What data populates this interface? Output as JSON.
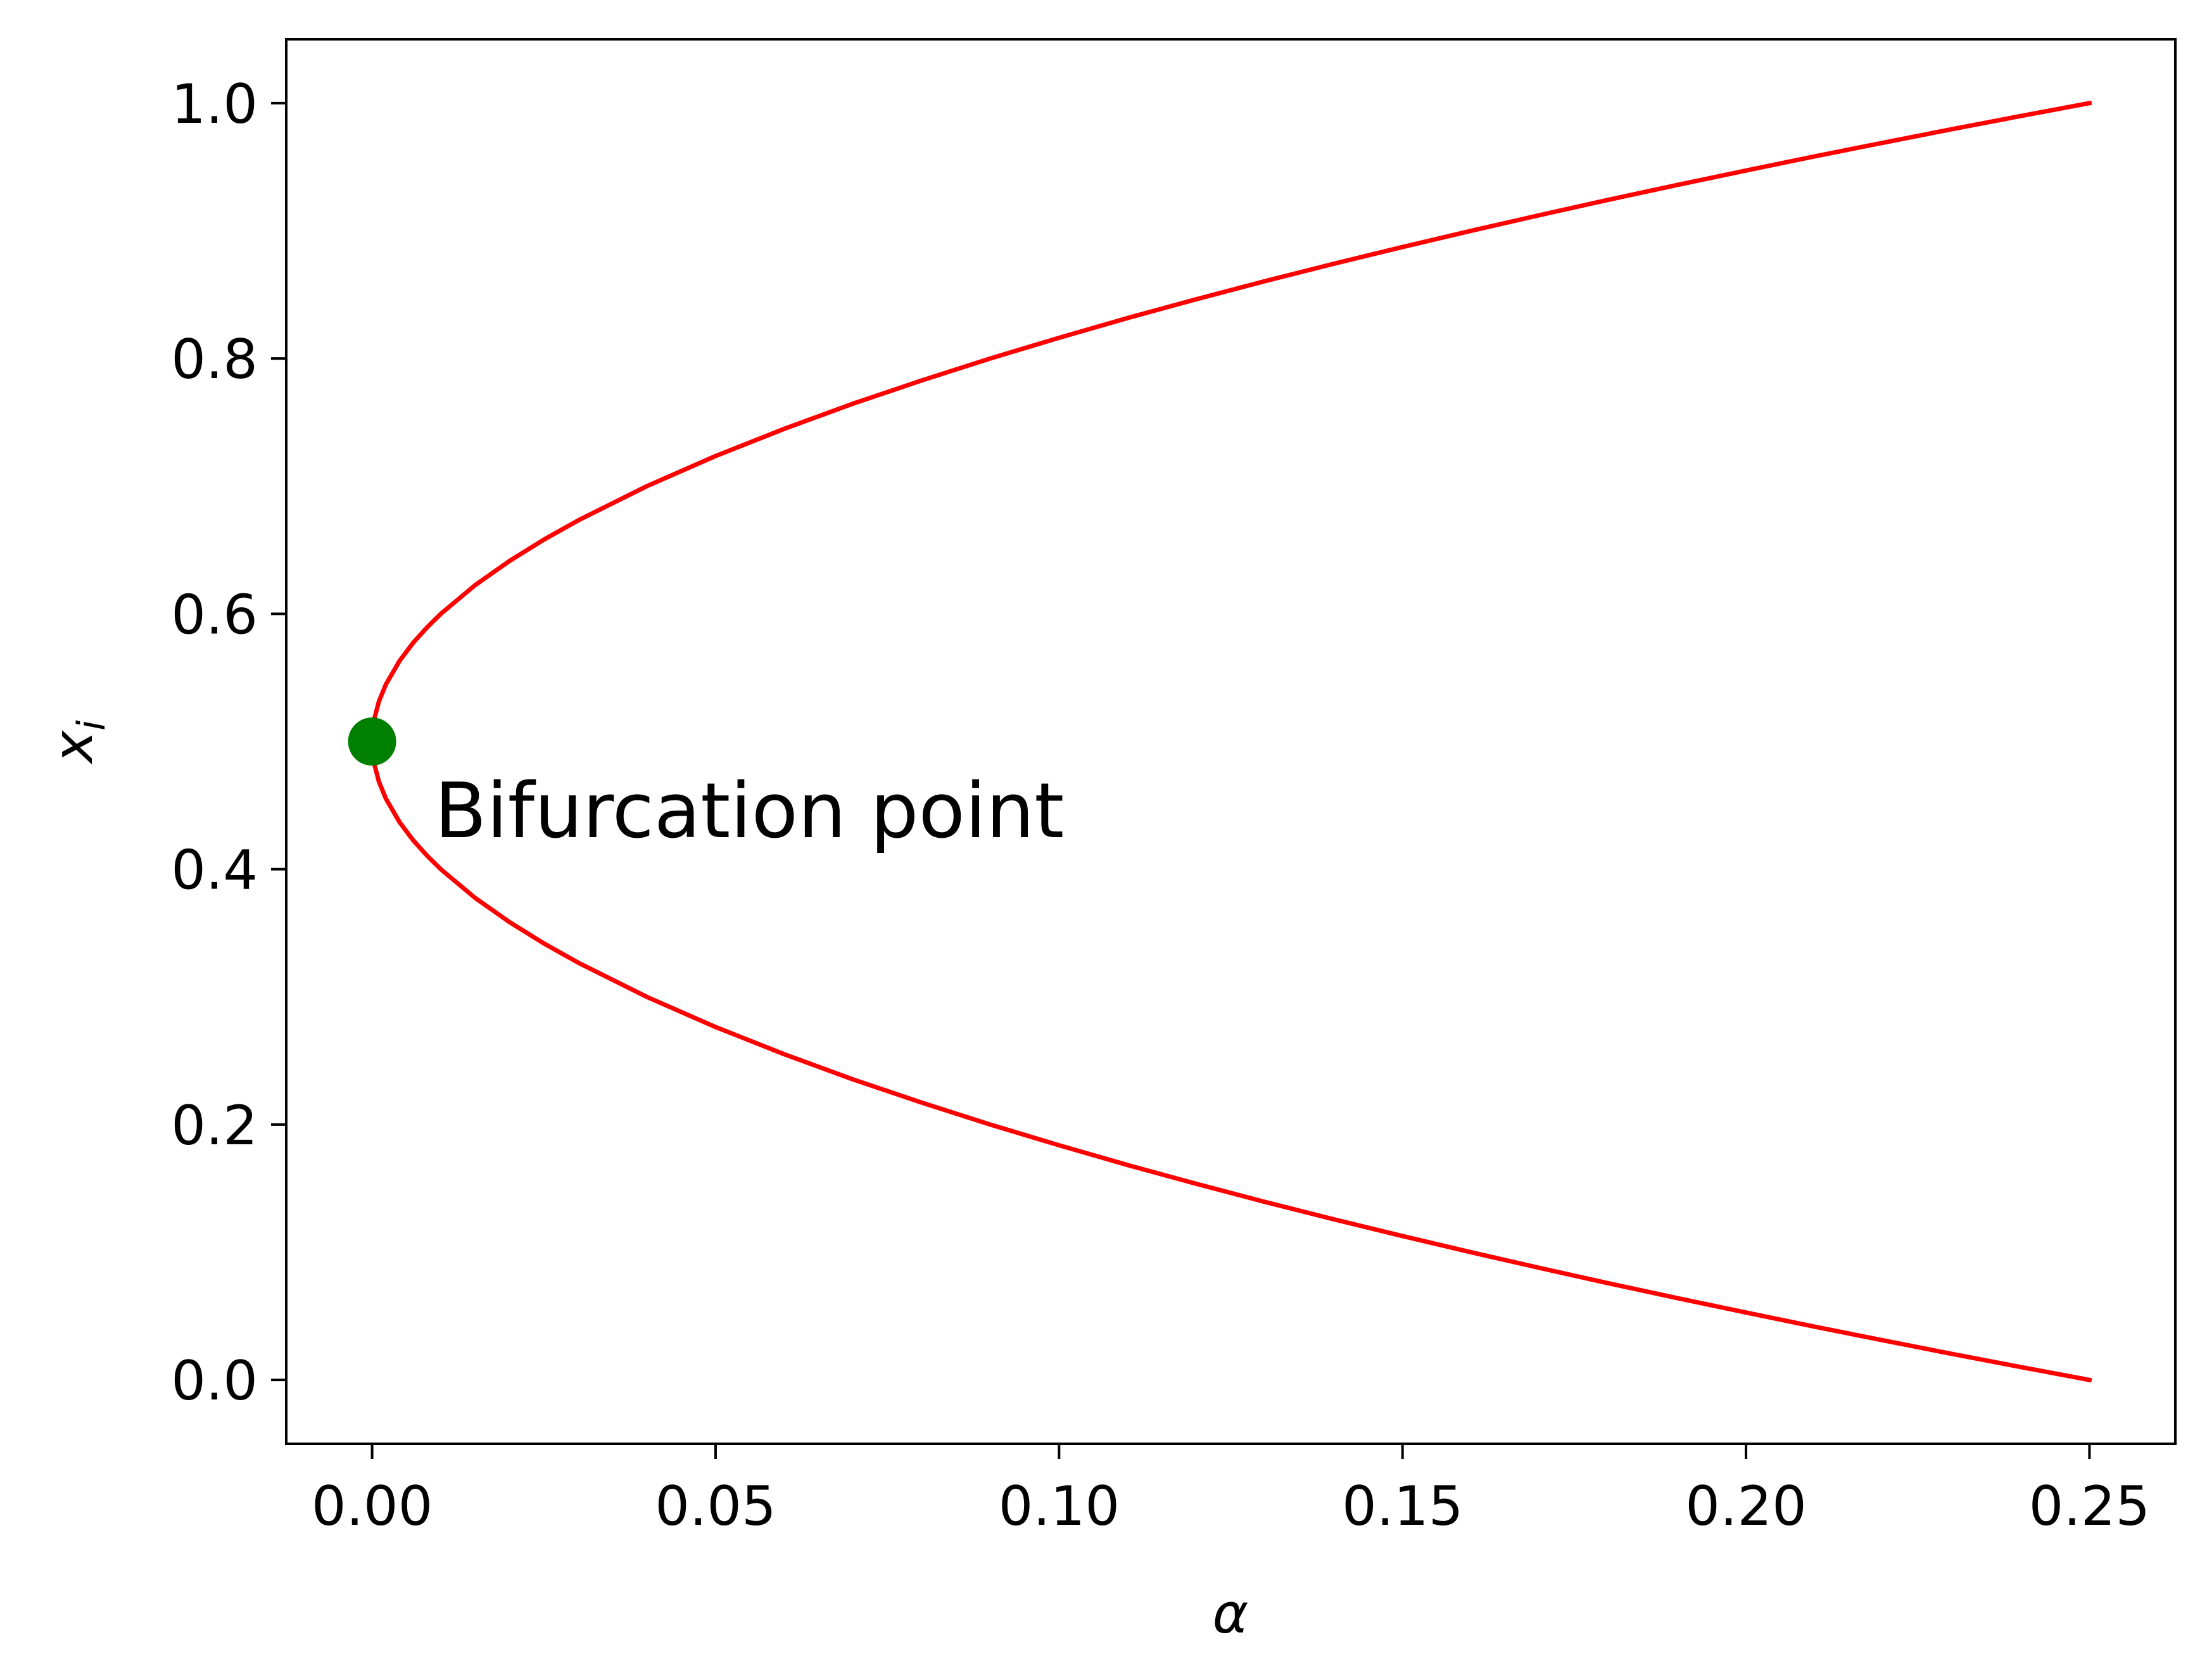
{
  "chart_data": {
    "type": "line",
    "title": "",
    "xlabel": "α",
    "ylabel_base": "x",
    "ylabel_sub": "i",
    "xlim": [
      -0.0125,
      0.2625
    ],
    "ylim": [
      -0.05,
      1.05
    ],
    "xticks": [
      0.0,
      0.05,
      0.1,
      0.15,
      0.2,
      0.25
    ],
    "xtick_labels": [
      "0.00",
      "0.05",
      "0.10",
      "0.15",
      "0.20",
      "0.25"
    ],
    "yticks": [
      0.0,
      0.2,
      0.4,
      0.6,
      0.8,
      1.0
    ],
    "ytick_labels": [
      "0.0",
      "0.2",
      "0.4",
      "0.6",
      "0.8",
      "1.0"
    ],
    "grid": false,
    "series": [
      {
        "color": "#ff0000",
        "x": [
          0.0,
          0.0003,
          0.001,
          0.002,
          0.004,
          0.006,
          0.008,
          0.01,
          0.015,
          0.02,
          0.025,
          0.03,
          0.04,
          0.05,
          0.06,
          0.07,
          0.08,
          0.09,
          0.1,
          0.11,
          0.12,
          0.13,
          0.14,
          0.15,
          0.16,
          0.17,
          0.18,
          0.19,
          0.2,
          0.21,
          0.22,
          0.23,
          0.24,
          0.25
        ],
        "y": [
          0.5,
          0.5173,
          0.5316,
          0.5447,
          0.5632,
          0.5775,
          0.5894,
          0.6,
          0.6225,
          0.6414,
          0.6581,
          0.6732,
          0.7,
          0.7236,
          0.7449,
          0.7646,
          0.7828,
          0.8,
          0.8162,
          0.8317,
          0.8464,
          0.8606,
          0.8742,
          0.8873,
          0.9,
          0.9123,
          0.9243,
          0.9359,
          0.9472,
          0.9583,
          0.969,
          0.9796,
          0.9899,
          1.0
        ]
      },
      {
        "color": "#ff0000",
        "x": [
          0.0,
          0.0003,
          0.001,
          0.002,
          0.004,
          0.006,
          0.008,
          0.01,
          0.015,
          0.02,
          0.025,
          0.03,
          0.04,
          0.05,
          0.06,
          0.07,
          0.08,
          0.09,
          0.1,
          0.11,
          0.12,
          0.13,
          0.14,
          0.15,
          0.16,
          0.17,
          0.18,
          0.19,
          0.2,
          0.21,
          0.22,
          0.23,
          0.24,
          0.25
        ],
        "y": [
          0.5,
          0.4827,
          0.4684,
          0.4553,
          0.4368,
          0.4225,
          0.4106,
          0.4,
          0.3775,
          0.3586,
          0.3419,
          0.3268,
          0.3,
          0.2764,
          0.2551,
          0.2354,
          0.2172,
          0.2,
          0.1838,
          0.1683,
          0.1536,
          0.1394,
          0.1258,
          0.1127,
          0.1,
          0.0877,
          0.0757,
          0.0641,
          0.0528,
          0.0417,
          0.031,
          0.0204,
          0.0101,
          0.0
        ]
      }
    ],
    "marker": {
      "x": 0.0,
      "y": 0.5,
      "color": "#008000"
    },
    "annotation": {
      "text": "Bifurcation point",
      "x": 0.01,
      "y": 0.45
    }
  }
}
